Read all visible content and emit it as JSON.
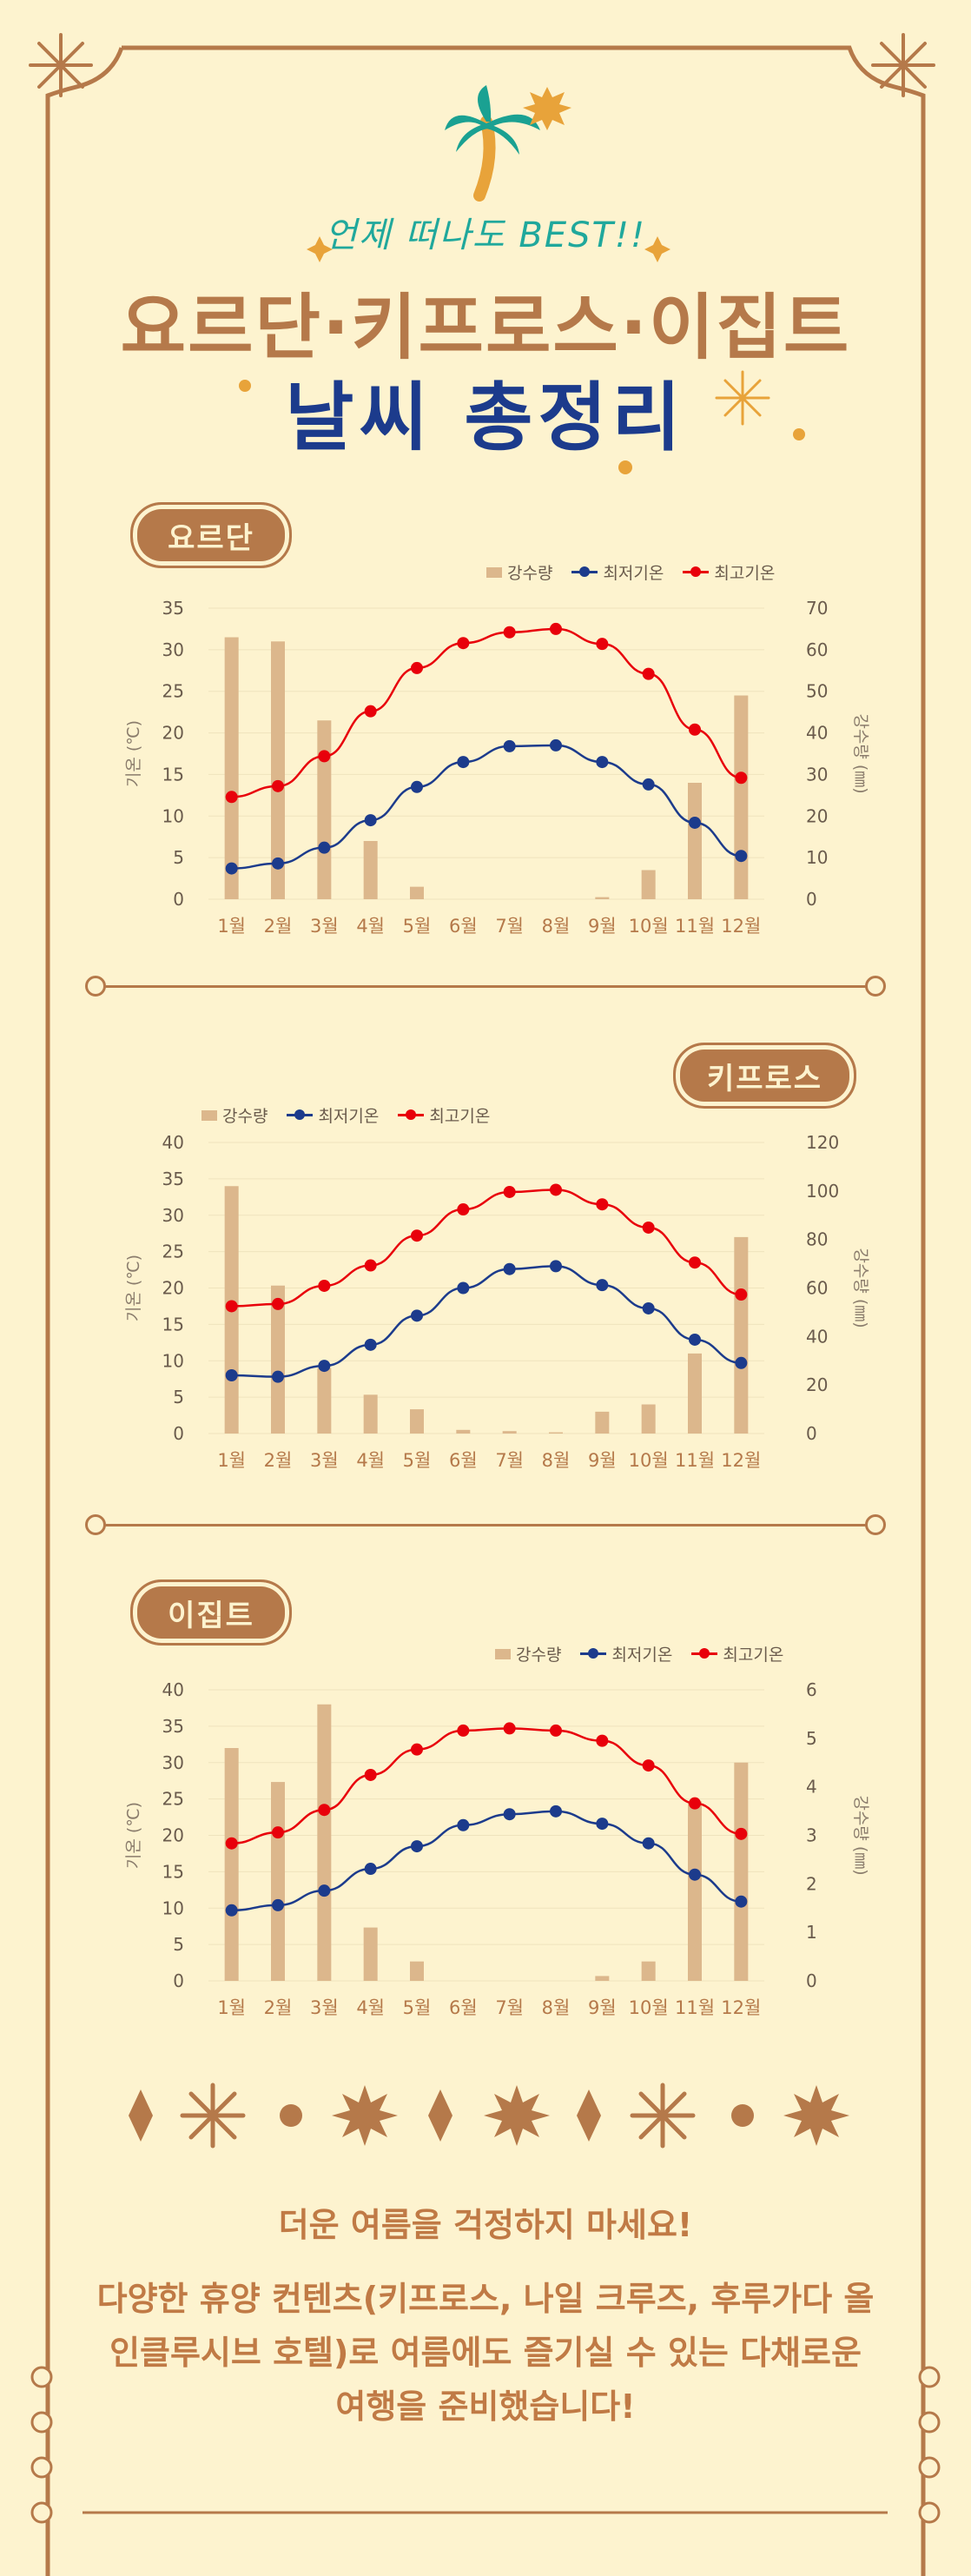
{
  "header": {
    "tagline": "언제 떠나도 BEST!!",
    "title_line1": "요르단·키프로스·이집트",
    "title_line2": "날씨 총정리"
  },
  "colors": {
    "background": "#fdf3cf",
    "brown": "#b5794a",
    "navy": "#1c3b8c",
    "teal": "#20a89c",
    "bar": "#dcb78c",
    "min_line": "#1c3b8c",
    "max_line": "#e8000b",
    "gold": "#e8a33a"
  },
  "legend": {
    "precip": "강수량",
    "min": "최저기온",
    "max": "최고기온"
  },
  "footer": {
    "line1": "더운 여름을 걱정하지 마세요!",
    "line2": "다양한 휴양 컨텐츠(키프로스, 나일 크루즈, 후루가다 올",
    "line3": "인클루시브 호텔)로 여름에도 즐기실 수 있는 다채로운",
    "line4": "여행을 준비했습니다!"
  },
  "chart_data": [
    {
      "type": "bar+line",
      "badge": "요르단",
      "categories": [
        "1월",
        "2월",
        "3월",
        "4월",
        "5월",
        "6월",
        "7월",
        "8월",
        "9월",
        "10월",
        "11월",
        "12월"
      ],
      "ylabel": "기온 (℃)",
      "y2label": "강수량 (㎜)",
      "ylim": [
        0,
        35
      ],
      "y_ticks": [
        0,
        5,
        10,
        15,
        20,
        25,
        30,
        35
      ],
      "y2lim": [
        0,
        70
      ],
      "y2_ticks": [
        0,
        10,
        20,
        30,
        40,
        50,
        60,
        70
      ],
      "series": [
        {
          "name": "강수량",
          "axis": "right",
          "kind": "bar",
          "values": [
            63,
            62,
            43,
            14,
            3,
            0,
            0,
            0,
            0.5,
            7,
            28,
            49
          ]
        },
        {
          "name": "최저기온",
          "axis": "left",
          "kind": "line",
          "values": [
            3.7,
            4.3,
            6.2,
            9.5,
            13.5,
            16.5,
            18.4,
            18.5,
            16.5,
            13.8,
            9.2,
            5.2
          ]
        },
        {
          "name": "최고기온",
          "axis": "left",
          "kind": "line",
          "values": [
            12.3,
            13.6,
            17.2,
            22.6,
            27.8,
            30.8,
            32.1,
            32.5,
            30.7,
            27.1,
            20.4,
            14.6
          ]
        }
      ],
      "legend_position": "top-right"
    },
    {
      "type": "bar+line",
      "badge": "키프로스",
      "categories": [
        "1월",
        "2월",
        "3월",
        "4월",
        "5월",
        "6월",
        "7월",
        "8월",
        "9월",
        "10월",
        "11월",
        "12월"
      ],
      "ylabel": "기온 (℃)",
      "y2label": "강수량 (㎜)",
      "ylim": [
        0,
        40
      ],
      "y_ticks": [
        0,
        5,
        10,
        15,
        20,
        25,
        30,
        35,
        40
      ],
      "y2lim": [
        0,
        120
      ],
      "y2_ticks": [
        0,
        20,
        40,
        60,
        80,
        100,
        120
      ],
      "series": [
        {
          "name": "강수량",
          "axis": "right",
          "kind": "bar",
          "values": [
            102,
            61,
            27,
            16,
            10,
            1.5,
            1,
            0.5,
            9,
            12,
            33,
            81
          ]
        },
        {
          "name": "최저기온",
          "axis": "left",
          "kind": "line",
          "values": [
            8,
            7.8,
            9.3,
            12.2,
            16.2,
            20,
            22.6,
            23,
            20.4,
            17.2,
            12.9,
            9.7
          ]
        },
        {
          "name": "최고기온",
          "axis": "left",
          "kind": "line",
          "values": [
            17.5,
            17.8,
            20.3,
            23.1,
            27.2,
            30.8,
            33.2,
            33.5,
            31.5,
            28.3,
            23.5,
            19.1
          ]
        }
      ],
      "legend_position": "top-left"
    },
    {
      "type": "bar+line",
      "badge": "이집트",
      "categories": [
        "1월",
        "2월",
        "3월",
        "4월",
        "5월",
        "6월",
        "7월",
        "8월",
        "9월",
        "10월",
        "11월",
        "12월"
      ],
      "ylabel": "기온 (℃)",
      "y2label": "강수량 (㎜)",
      "ylim": [
        0,
        40
      ],
      "y_ticks": [
        0,
        5,
        10,
        15,
        20,
        25,
        30,
        35,
        40
      ],
      "y2lim": [
        0,
        6
      ],
      "y2_ticks": [
        0,
        1,
        2,
        3,
        4,
        5,
        6
      ],
      "series": [
        {
          "name": "강수량",
          "axis": "right",
          "kind": "bar",
          "values": [
            4.8,
            4.1,
            5.7,
            1.1,
            0.4,
            0,
            0,
            0,
            0.1,
            0.4,
            3.7,
            4.5
          ]
        },
        {
          "name": "최저기온",
          "axis": "left",
          "kind": "line",
          "values": [
            9.7,
            10.4,
            12.4,
            15.4,
            18.5,
            21.4,
            22.9,
            23.3,
            21.6,
            18.9,
            14.6,
            10.9
          ]
        },
        {
          "name": "최고기온",
          "axis": "left",
          "kind": "line",
          "values": [
            18.9,
            20.4,
            23.5,
            28.3,
            31.8,
            34.4,
            34.7,
            34.4,
            33,
            29.6,
            24.4,
            20.2
          ]
        }
      ],
      "legend_position": "top-right"
    }
  ]
}
